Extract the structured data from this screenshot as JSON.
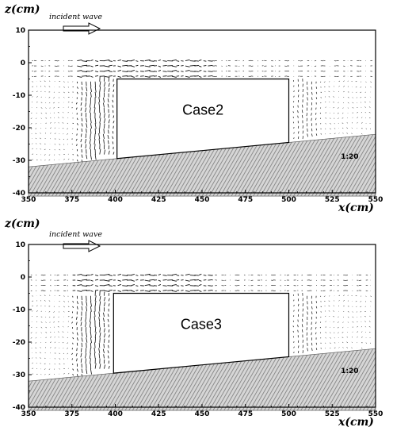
{
  "panels": [
    {
      "case_label": "Case2",
      "z_axis_label": "z(cm)",
      "x_axis_label": "x(cm)",
      "incident_label": "incident wave",
      "slope_label": "1:20",
      "x_ticks": [
        "350",
        "375",
        "400",
        "425",
        "450",
        "475",
        "500",
        "525",
        "550"
      ],
      "z_ticks": [
        "10",
        "0",
        "-10",
        "-20",
        "-30",
        "-40"
      ],
      "structure": {
        "x_left": 401,
        "x_right": 500,
        "z_top": -5
      }
    },
    {
      "case_label": "Case3",
      "z_axis_label": "z(cm)",
      "x_axis_label": "x(cm)",
      "incident_label": "incident wave",
      "slope_label": "1:20",
      "x_ticks": [
        "350",
        "375",
        "400",
        "425",
        "450",
        "475",
        "500",
        "525",
        "550"
      ],
      "z_ticks": [
        "10",
        "0",
        "-10",
        "-20",
        "-30",
        "-40"
      ],
      "structure": {
        "x_left": 399,
        "x_right": 500,
        "z_top": -5
      }
    }
  ],
  "axes": {
    "x_range": [
      350,
      550
    ],
    "z_range": [
      -40,
      10
    ],
    "bed_slope": "1:20"
  },
  "colors": {
    "vectors": "#111111",
    "bed_hatch": "#8a8a8a",
    "structure_fill": "#ffffff"
  }
}
